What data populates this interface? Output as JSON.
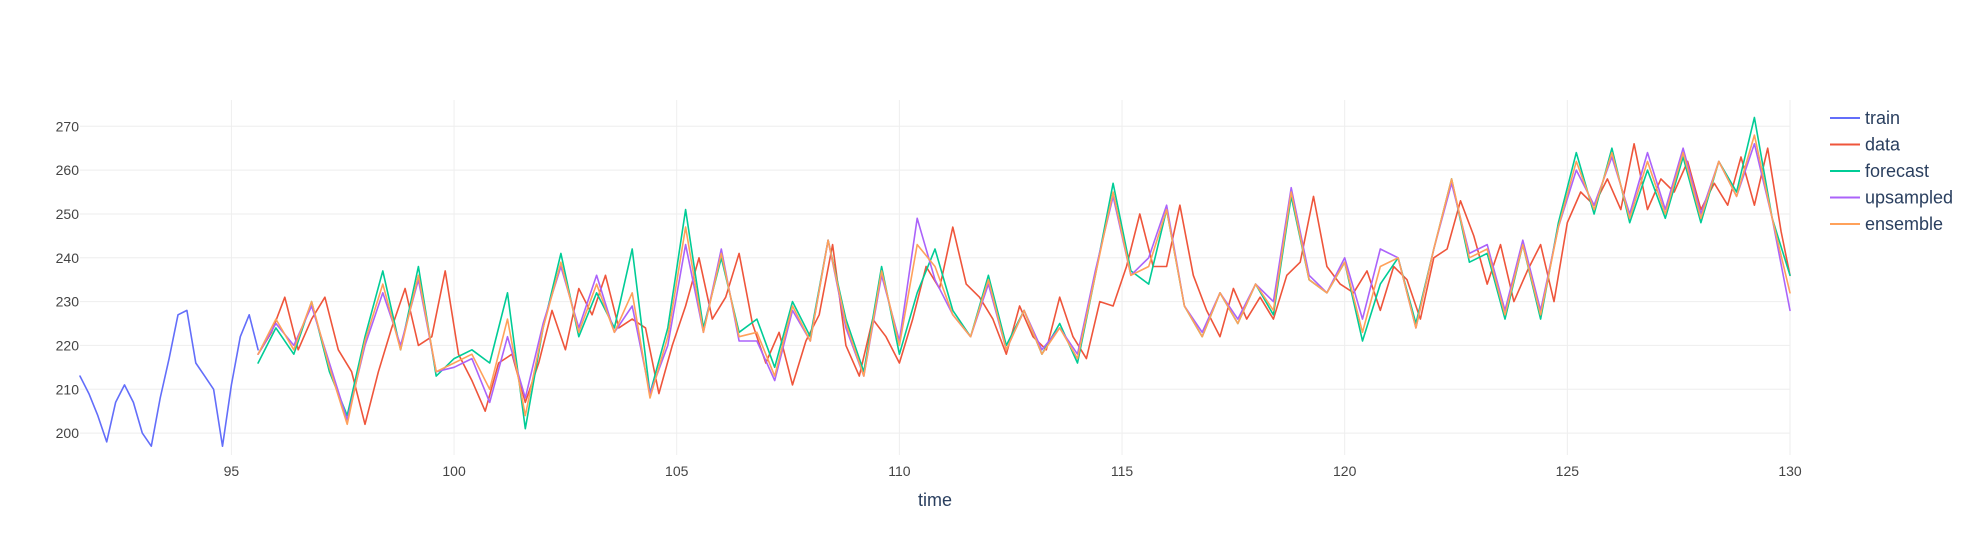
{
  "chart_data": {
    "type": "line",
    "xlabel": "time",
    "ylabel": "",
    "xlim": [
      91.6,
      130
    ],
    "ylim": [
      195,
      276
    ],
    "x_ticks": [
      95,
      100,
      105,
      110,
      115,
      120,
      125,
      130
    ],
    "y_ticks": [
      200,
      210,
      220,
      230,
      240,
      250,
      260,
      270
    ],
    "grid": true,
    "legend_position": "top-right",
    "series": [
      {
        "name": "train",
        "color": "#636efa",
        "x": [
          91.6,
          91.8,
          92.0,
          92.2,
          92.4,
          92.6,
          92.8,
          93.0,
          93.2,
          93.4,
          93.6,
          93.8,
          94.0,
          94.2,
          94.4,
          94.6,
          94.8,
          95.0,
          95.2,
          95.4,
          95.6
        ],
        "y": [
          213,
          209,
          204,
          198,
          207,
          211,
          207,
          200,
          197,
          208,
          217,
          227,
          228,
          216,
          213,
          210,
          197,
          211,
          222,
          227,
          219
        ]
      },
      {
        "name": "data",
        "color": "#ef553b",
        "x": [
          95.6,
          95.9,
          96.2,
          96.5,
          96.8,
          97.1,
          97.4,
          97.7,
          98.0,
          98.3,
          98.6,
          98.9,
          99.2,
          99.5,
          99.8,
          100.1,
          100.4,
          100.7,
          101.0,
          101.3,
          101.6,
          101.9,
          102.2,
          102.5,
          102.8,
          103.1,
          103.4,
          103.7,
          104.0,
          104.3,
          104.6,
          104.9,
          105.2,
          105.5,
          105.8,
          106.1,
          106.4,
          106.7,
          107.0,
          107.3,
          107.6,
          107.9,
          108.2,
          108.5,
          108.8,
          109.1,
          109.4,
          109.7,
          110.0,
          110.3,
          110.6,
          110.9,
          111.2,
          111.5,
          111.8,
          112.1,
          112.4,
          112.7,
          113.0,
          113.3,
          113.6,
          113.9,
          114.2,
          114.5,
          114.8,
          115.1,
          115.4,
          115.7,
          116.0,
          116.3,
          116.6,
          116.9,
          117.2,
          117.5,
          117.8,
          118.1,
          118.4,
          118.7,
          119.0,
          119.3,
          119.6,
          119.9,
          120.2,
          120.5,
          120.8,
          121.1,
          121.4,
          121.7,
          122.0,
          122.3,
          122.6,
          122.9,
          123.2,
          123.5,
          123.8,
          124.1,
          124.4,
          124.7,
          125.0,
          125.3,
          125.6,
          125.9,
          126.2,
          126.5,
          126.8,
          127.1,
          127.4,
          127.7,
          128.0,
          128.3,
          128.6,
          128.9,
          129.2,
          129.5,
          129.8,
          130.0
        ],
        "y": [
          218,
          223,
          231,
          219,
          226,
          231,
          219,
          214,
          202,
          214,
          224,
          233,
          220,
          222,
          237,
          218,
          212,
          205,
          216,
          218,
          207,
          216,
          228,
          219,
          233,
          227,
          236,
          224,
          226,
          224,
          209,
          220,
          229,
          240,
          226,
          231,
          241,
          225,
          216,
          223,
          211,
          221,
          227,
          243,
          220,
          213,
          226,
          222,
          216,
          226,
          238,
          233,
          247,
          234,
          231,
          226,
          218,
          229,
          222,
          219,
          231,
          222,
          217,
          230,
          229,
          238,
          250,
          238,
          238,
          252,
          236,
          228,
          222,
          233,
          226,
          231,
          226,
          236,
          239,
          254,
          238,
          234,
          232,
          237,
          228,
          238,
          235,
          226,
          240,
          242,
          253,
          245,
          234,
          243,
          230,
          237,
          243,
          230,
          248,
          255,
          252,
          258,
          251,
          266,
          251,
          258,
          255,
          262,
          251,
          257,
          252,
          263,
          252,
          265,
          246,
          236
        ]
      },
      {
        "name": "forecast",
        "color": "#00cc96",
        "x": [
          95.6,
          96.0,
          96.4,
          96.8,
          97.2,
          97.6,
          98.0,
          98.4,
          98.8,
          99.2,
          99.6,
          100.0,
          100.4,
          100.8,
          101.2,
          101.6,
          102.0,
          102.4,
          102.8,
          103.2,
          103.6,
          104.0,
          104.4,
          104.8,
          105.2,
          105.6,
          106.0,
          106.4,
          106.8,
          107.2,
          107.6,
          108.0,
          108.4,
          108.8,
          109.2,
          109.6,
          110.0,
          110.4,
          110.8,
          111.2,
          111.6,
          112.0,
          112.4,
          112.8,
          113.2,
          113.6,
          114.0,
          114.4,
          114.8,
          115.2,
          115.6,
          116.0,
          116.4,
          116.8,
          117.2,
          117.6,
          118.0,
          118.4,
          118.8,
          119.2,
          119.6,
          120.0,
          120.4,
          120.8,
          121.2,
          121.6,
          122.0,
          122.4,
          122.8,
          123.2,
          123.6,
          124.0,
          124.4,
          124.8,
          125.2,
          125.6,
          126.0,
          126.4,
          126.8,
          127.2,
          127.6,
          128.0,
          128.4,
          128.8,
          129.2,
          129.6,
          130.0
        ],
        "y": [
          216,
          224,
          218,
          230,
          214,
          204,
          222,
          237,
          219,
          238,
          213,
          217,
          219,
          216,
          232,
          201,
          224,
          241,
          222,
          232,
          224,
          242,
          209,
          224,
          251,
          224,
          240,
          223,
          226,
          215,
          230,
          222,
          244,
          226,
          214,
          238,
          218,
          232,
          242,
          228,
          222,
          236,
          220,
          228,
          218,
          225,
          216,
          236,
          257,
          237,
          234,
          251,
          229,
          222,
          232,
          225,
          234,
          227,
          254,
          235,
          232,
          239,
          221,
          234,
          240,
          225,
          242,
          258,
          239,
          241,
          226,
          243,
          226,
          248,
          264,
          250,
          265,
          248,
          260,
          249,
          263,
          248,
          262,
          255,
          272,
          249,
          236
        ]
      },
      {
        "name": "upsampled",
        "color": "#ab63fa",
        "x": [
          95.6,
          96.0,
          96.4,
          96.8,
          97.2,
          97.6,
          98.0,
          98.4,
          98.8,
          99.2,
          99.6,
          100.0,
          100.4,
          100.8,
          101.2,
          101.6,
          102.0,
          102.4,
          102.8,
          103.2,
          103.6,
          104.0,
          104.4,
          104.8,
          105.2,
          105.6,
          106.0,
          106.4,
          106.8,
          107.2,
          107.6,
          108.0,
          108.4,
          108.8,
          109.2,
          109.6,
          110.0,
          110.4,
          110.8,
          111.2,
          111.6,
          112.0,
          112.4,
          112.8,
          113.2,
          113.6,
          114.0,
          114.4,
          114.8,
          115.2,
          115.6,
          116.0,
          116.4,
          116.8,
          117.2,
          117.6,
          118.0,
          118.4,
          118.8,
          119.2,
          119.6,
          120.0,
          120.4,
          120.8,
          121.2,
          121.6,
          122.0,
          122.4,
          122.8,
          123.2,
          123.6,
          124.0,
          124.4,
          124.8,
          125.2,
          125.6,
          126.0,
          126.4,
          126.8,
          127.2,
          127.6,
          128.0,
          128.4,
          128.8,
          129.2,
          129.6,
          130.0
        ],
        "y": [
          218,
          225,
          220,
          229,
          216,
          203,
          220,
          232,
          220,
          235,
          214,
          215,
          217,
          207,
          222,
          208,
          225,
          238,
          224,
          236,
          223,
          229,
          209,
          220,
          243,
          223,
          242,
          221,
          221,
          212,
          228,
          221,
          244,
          224,
          213,
          236,
          221,
          249,
          235,
          227,
          222,
          234,
          219,
          228,
          219,
          224,
          218,
          237,
          254,
          236,
          240,
          252,
          229,
          223,
          232,
          226,
          234,
          230,
          256,
          236,
          232,
          240,
          226,
          242,
          240,
          224,
          242,
          257,
          241,
          243,
          228,
          244,
          228,
          247,
          260,
          252,
          263,
          250,
          264,
          251,
          265,
          250,
          262,
          254,
          266,
          249,
          228
        ]
      },
      {
        "name": "ensemble",
        "color": "#ffa15a",
        "x": [
          95.6,
          96.0,
          96.4,
          96.8,
          97.2,
          97.6,
          98.0,
          98.4,
          98.8,
          99.2,
          99.6,
          100.0,
          100.4,
          100.8,
          101.2,
          101.6,
          102.0,
          102.4,
          102.8,
          103.2,
          103.6,
          104.0,
          104.4,
          104.8,
          105.2,
          105.6,
          106.0,
          106.4,
          106.8,
          107.2,
          107.6,
          108.0,
          108.4,
          108.8,
          109.2,
          109.6,
          110.0,
          110.4,
          110.8,
          111.2,
          111.6,
          112.0,
          112.4,
          112.8,
          113.2,
          113.6,
          114.0,
          114.4,
          114.8,
          115.2,
          115.6,
          116.0,
          116.4,
          116.8,
          117.2,
          117.6,
          118.0,
          118.4,
          118.8,
          119.2,
          119.6,
          120.0,
          120.4,
          120.8,
          121.2,
          121.6,
          122.0,
          122.4,
          122.8,
          123.2,
          123.6,
          124.0,
          124.4,
          124.8,
          125.2,
          125.6,
          126.0,
          126.4,
          126.8,
          127.2,
          127.6,
          128.0,
          128.4,
          128.8,
          129.2,
          129.6,
          130.0
        ],
        "y": [
          218,
          226,
          219,
          230,
          215,
          202,
          221,
          234,
          219,
          236,
          214,
          216,
          218,
          210,
          226,
          204,
          224,
          239,
          223,
          234,
          223,
          232,
          208,
          222,
          247,
          223,
          241,
          222,
          223,
          213,
          229,
          221,
          244,
          225,
          213,
          237,
          220,
          243,
          238,
          227,
          222,
          235,
          219,
          228,
          218,
          224,
          217,
          236,
          255,
          236,
          238,
          251,
          229,
          222,
          232,
          225,
          234,
          228,
          255,
          235,
          232,
          239,
          223,
          238,
          240,
          224,
          242,
          258,
          240,
          242,
          227,
          243,
          227,
          247,
          262,
          251,
          264,
          249,
          262,
          250,
          264,
          249,
          262,
          254,
          268,
          249,
          232
        ]
      }
    ]
  }
}
